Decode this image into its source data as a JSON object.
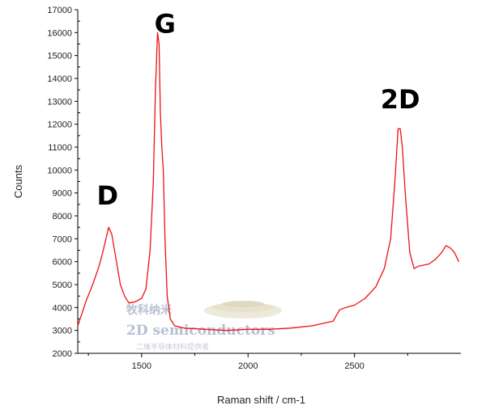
{
  "chart_data": {
    "type": "line",
    "title": "",
    "xlabel": "Raman shift / cm-1",
    "ylabel": "Counts",
    "xlim": [
      1200,
      3000
    ],
    "ylim": [
      2000,
      17000
    ],
    "x_ticks": [
      1500,
      2000,
      2500
    ],
    "y_ticks": [
      2000,
      3000,
      4000,
      5000,
      6000,
      7000,
      8000,
      9000,
      10000,
      11000,
      12000,
      13000,
      14000,
      15000,
      16000,
      17000
    ],
    "grid": false,
    "legend": "none",
    "line_color": "#ee1111",
    "series": [
      {
        "x": [
          1200,
          1240,
          1270,
          1300,
          1320,
          1345,
          1360,
          1380,
          1400,
          1420,
          1440,
          1470,
          1500,
          1520,
          1540,
          1555,
          1565,
          1575,
          1582,
          1588,
          1595,
          1602,
          1610,
          1620,
          1635,
          1655,
          1700,
          1800,
          1900,
          2000,
          2100,
          2200,
          2300,
          2400,
          2430,
          2460,
          2500,
          2550,
          2600,
          2640,
          2670,
          2690,
          2705,
          2715,
          2725,
          2740,
          2760,
          2780,
          2800,
          2850,
          2880,
          2910,
          2930,
          2950,
          2970,
          2990
        ],
        "y": [
          3200,
          4300,
          5000,
          5800,
          6500,
          7500,
          7200,
          6100,
          5000,
          4500,
          4200,
          4250,
          4400,
          4800,
          6500,
          9500,
          13500,
          16000,
          15500,
          12500,
          11000,
          10000,
          7000,
          4500,
          3500,
          3200,
          3100,
          3050,
          3000,
          3050,
          3050,
          3100,
          3200,
          3400,
          3900,
          4000,
          4100,
          4400,
          4900,
          5700,
          7000,
          9500,
          11800,
          11800,
          11000,
          8800,
          6400,
          5700,
          5800,
          5900,
          6100,
          6400,
          6700,
          6600,
          6400,
          6000
        ]
      }
    ],
    "annotations": [
      {
        "text": "D",
        "x": 1340,
        "y": 8500
      },
      {
        "text": "G",
        "x": 1610,
        "y": 16000
      },
      {
        "text": "2D",
        "x": 2715,
        "y": 12700
      }
    ]
  },
  "watermark": {
    "line1": "牧科纳米",
    "line2": "2D semiconductors",
    "line3": "二维半导体材料提供者"
  }
}
